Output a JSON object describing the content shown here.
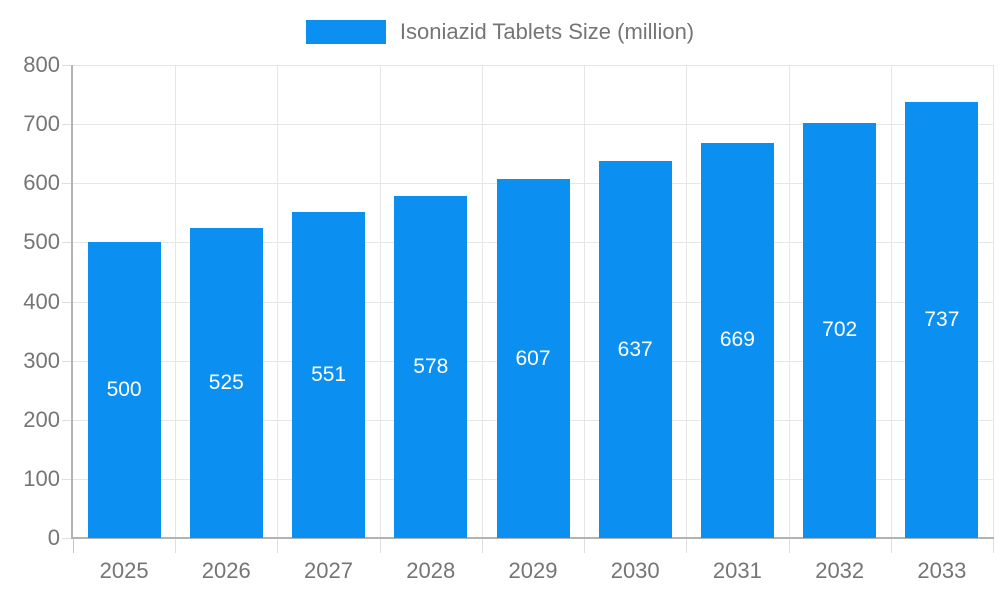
{
  "legend": {
    "label": "Isoniazid Tablets Size (million)"
  },
  "chart_data": {
    "type": "bar",
    "title": "",
    "series_name": "Isoniazid Tablets Size (million)",
    "categories": [
      "2025",
      "2026",
      "2027",
      "2028",
      "2029",
      "2030",
      "2031",
      "2032",
      "2033"
    ],
    "values": [
      500,
      525,
      551,
      578,
      607,
      637,
      669,
      702,
      737
    ],
    "value_labels": [
      "500",
      "525",
      "551",
      "578",
      "607",
      "637",
      "669",
      "702",
      "737"
    ],
    "xlabel": "",
    "ylabel": "",
    "ylim": [
      0,
      800
    ],
    "ytick_step": 100,
    "yticks": [
      0,
      100,
      200,
      300,
      400,
      500,
      600,
      700,
      800
    ],
    "grid": true,
    "legend_position": "top",
    "value_labels_inside_bars": true
  },
  "colors": {
    "bar": "#0b90f2",
    "bar_label_text": "#ffffff",
    "axis_text": "#757575",
    "legend_text": "#757575",
    "gridline": "#e6e6e6",
    "axis_line": "#b3b3b3",
    "outer_tick": "#dedede",
    "corner_tick": "#c6c6c6"
  }
}
